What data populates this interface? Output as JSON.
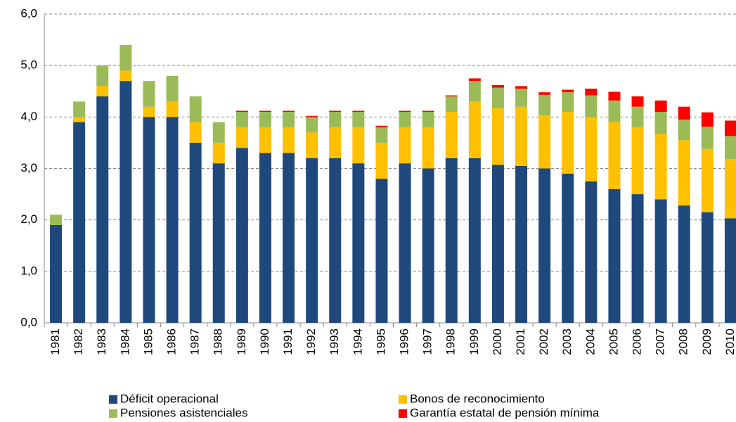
{
  "chart_data": {
    "type": "stacked_bar",
    "categories": [
      "1981",
      "1982",
      "1983",
      "1984",
      "1985",
      "1986",
      "1987",
      "1988",
      "1989",
      "1990",
      "1991",
      "1992",
      "1993",
      "1994",
      "1995",
      "1996",
      "1997",
      "1998",
      "1999",
      "2000",
      "2001",
      "2002",
      "2003",
      "2004",
      "2005",
      "2006",
      "2007",
      "2008",
      "2009",
      "2010"
    ],
    "series": [
      {
        "name": "Déficit operacional",
        "color": "#1f497d",
        "values": [
          1.9,
          3.9,
          4.4,
          4.7,
          4.0,
          4.0,
          3.5,
          3.1,
          3.4,
          3.3,
          3.3,
          3.2,
          3.2,
          3.1,
          2.8,
          3.1,
          3.0,
          3.2,
          3.2,
          3.07,
          3.05,
          3.0,
          2.9,
          2.75,
          2.6,
          2.5,
          2.4,
          2.28,
          2.15,
          2.03
        ]
      },
      {
        "name": "Bonos de reconocimiento",
        "color": "#ffc000",
        "values": [
          0,
          0.1,
          0.2,
          0.2,
          0.2,
          0.3,
          0.4,
          0.4,
          0.4,
          0.5,
          0.5,
          0.5,
          0.6,
          0.7,
          0.7,
          0.7,
          0.8,
          0.9,
          1.1,
          1.1,
          1.15,
          1.03,
          1.2,
          1.25,
          1.3,
          1.3,
          1.27,
          1.27,
          1.23,
          1.15
        ]
      },
      {
        "name": "Pensiones asistenciales",
        "color": "#9bbb59",
        "values": [
          0.2,
          0.3,
          0.4,
          0.5,
          0.5,
          0.5,
          0.5,
          0.4,
          0.3,
          0.3,
          0.3,
          0.3,
          0.3,
          0.3,
          0.3,
          0.3,
          0.3,
          0.3,
          0.4,
          0.4,
          0.35,
          0.4,
          0.38,
          0.42,
          0.42,
          0.4,
          0.43,
          0.4,
          0.43,
          0.45
        ]
      },
      {
        "name": "Garantía estatal de pensión mínima",
        "color": "#ff0000",
        "values": [
          0,
          0,
          0,
          0,
          0,
          0,
          0,
          0,
          0.02,
          0.02,
          0.02,
          0.02,
          0.02,
          0.02,
          0.03,
          0.02,
          0.02,
          0.02,
          0.05,
          0.05,
          0.05,
          0.05,
          0.05,
          0.13,
          0.17,
          0.2,
          0.22,
          0.25,
          0.28,
          0.3
        ]
      }
    ],
    "ylim": [
      0,
      6
    ],
    "yticks": [
      {
        "value": 0,
        "label": "0,0"
      },
      {
        "value": 1,
        "label": "1,0"
      },
      {
        "value": 2,
        "label": "2,0"
      },
      {
        "value": 3,
        "label": "3,0"
      },
      {
        "value": 4,
        "label": "4,0"
      },
      {
        "value": 5,
        "label": "5,0"
      },
      {
        "value": 6,
        "label": "6,0"
      }
    ],
    "grid": true
  }
}
